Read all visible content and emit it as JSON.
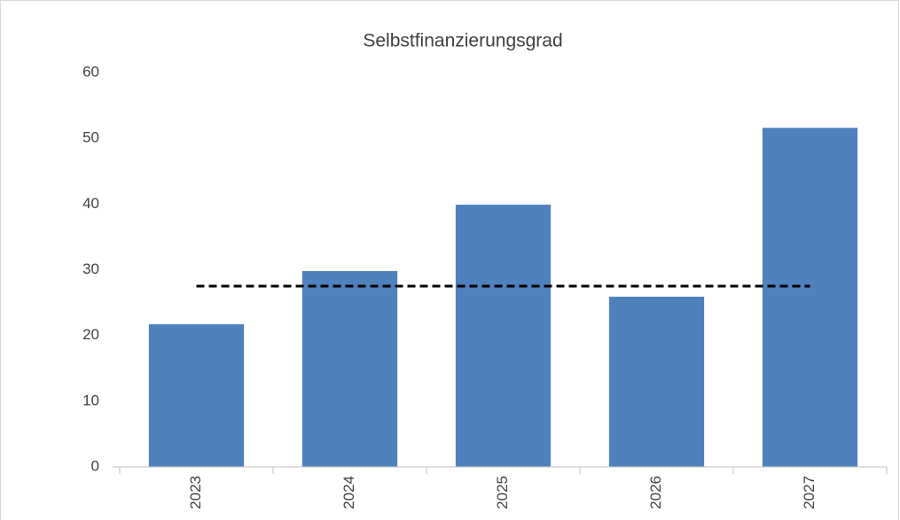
{
  "chart_data": {
    "type": "bar",
    "title": "Selbstfinanzierungsgrad",
    "categories": [
      "2023",
      "2024",
      "2025",
      "2026",
      "2027"
    ],
    "values": [
      21.7,
      29.8,
      39.9,
      25.9,
      51.6
    ],
    "color": "#4f81bd",
    "line": {
      "values": [
        27.5,
        27.5,
        27.5,
        27.5,
        27.5
      ],
      "color": "#000000",
      "dashed": true
    },
    "ylim": [
      0,
      60
    ],
    "yticks": [
      0,
      10,
      20,
      30,
      40,
      50,
      60
    ],
    "grid": false
  }
}
